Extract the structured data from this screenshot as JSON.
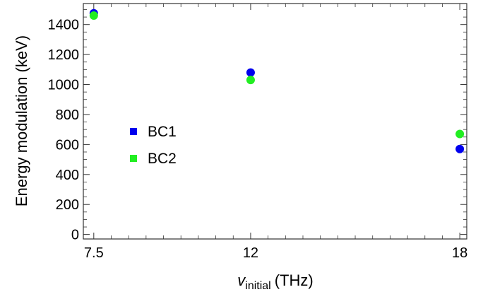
{
  "chart_data": {
    "type": "scatter",
    "title": "",
    "xlabel": {
      "symbol": "v",
      "subscript": "initial",
      "unit": "(THz)"
    },
    "ylabel": "Energy modulation (keV)",
    "x_ticks": [
      "7.5",
      "12",
      "18"
    ],
    "y_ticks": [
      "0",
      "200",
      "400",
      "600",
      "800",
      "1000",
      "1200",
      "1400"
    ],
    "xlim": [
      7.2,
      18.2
    ],
    "ylim": [
      -30,
      1540
    ],
    "series": [
      {
        "name": "BC1",
        "color": "#0000ee",
        "x": [
          7.5,
          12,
          18
        ],
        "y": [
          1475,
          1080,
          570
        ]
      },
      {
        "name": "BC2",
        "color": "#22ee22",
        "x": [
          7.5,
          12,
          18
        ],
        "y": [
          1460,
          1030,
          670
        ]
      }
    ],
    "legend_position": "middle-left",
    "grid": false
  }
}
